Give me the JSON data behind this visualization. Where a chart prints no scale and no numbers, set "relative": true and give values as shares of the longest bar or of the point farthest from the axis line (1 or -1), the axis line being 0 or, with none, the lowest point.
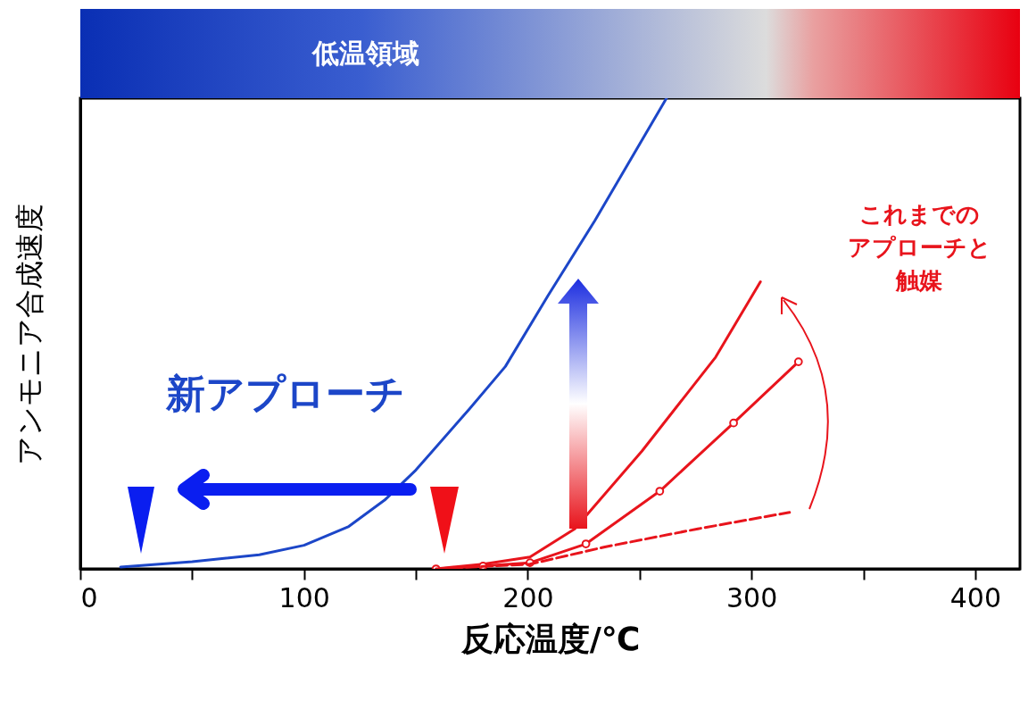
{
  "chart_data": {
    "type": "line",
    "relative": true,
    "xlabel": "反応温度/℃",
    "ylabel": "アンモニア合成速度",
    "xlim": [
      0,
      420
    ],
    "xticks": [
      0,
      {
        "value": 50,
        "label": null
      },
      100,
      {
        "value": 150,
        "label": null
      },
      200,
      {
        "value": 250,
        "label": null
      },
      300,
      {
        "value": 350,
        "label": null
      },
      400
    ],
    "grid": false,
    "tick_labels": "x",
    "annotations": [
      "低温領域",
      "新アプローチ",
      "これまでの",
      "アプローチと",
      "触媒"
    ],
    "series": [
      {
        "color": "#1c46c8",
        "line_style": "solid",
        "x": [
          18,
          50,
          80,
          100,
          120,
          136,
          150,
          174,
          190,
          209,
          230,
          262
        ],
        "values": [
          0.004,
          0.015,
          0.03,
          0.05,
          0.09,
          0.146,
          0.21,
          0.34,
          0.43,
          0.58,
          0.74,
          1.0
        ]
      },
      {
        "color": "#e8141c",
        "line_style": "solid",
        "x": [
          159,
          180,
          201,
          221,
          251,
          284,
          304
        ],
        "values": [
          0,
          0.01,
          0.025,
          0.085,
          0.25,
          0.45,
          0.61
        ]
      },
      {
        "color": "#e8141c",
        "marker": "circle",
        "x": [
          159,
          180,
          201,
          226,
          259,
          292,
          321
        ],
        "values": [
          0,
          0.006,
          0.013,
          0.053,
          0.165,
          0.31,
          0.44
        ]
      },
      {
        "color": "#e8141c",
        "line_style": "dashed",
        "x": [
          159,
          180,
          201,
          234,
          276,
          317
        ],
        "values": [
          0,
          0.005,
          0.01,
          0.046,
          0.085,
          0.12
        ]
      }
    ]
  }
}
